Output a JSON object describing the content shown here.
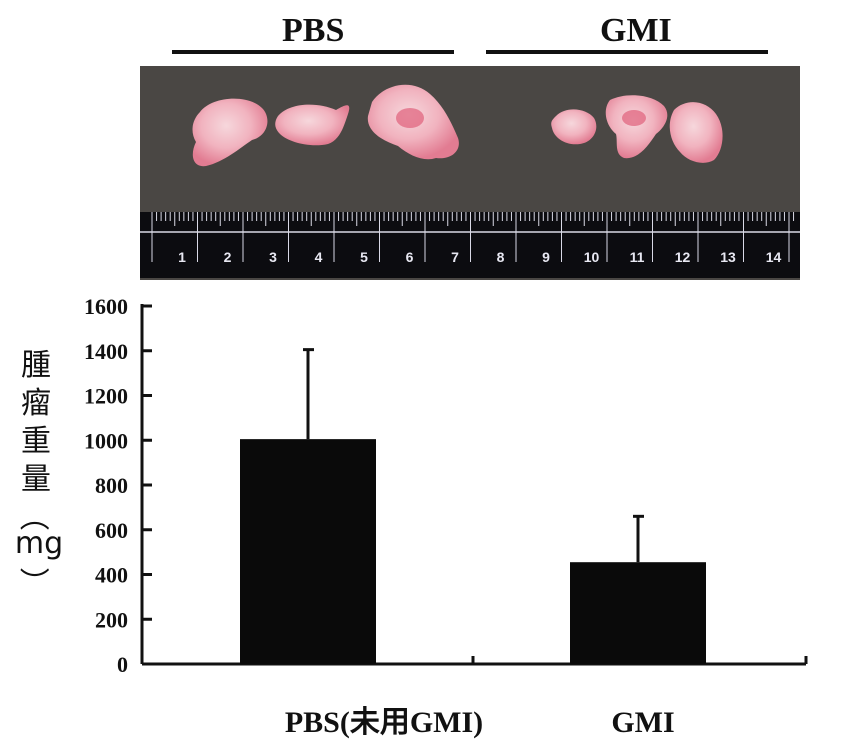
{
  "photo_group_labels": {
    "left": "PBS",
    "right": "GMI"
  },
  "ruler_numbers": [
    "1",
    "2",
    "3",
    "4",
    "5",
    "6",
    "7",
    "8",
    "9",
    "10",
    "11",
    "12",
    "13",
    "14"
  ],
  "ylabel": {
    "chars": [
      "腫",
      "瘤",
      "重",
      "量"
    ],
    "open_paren": "（",
    "unit": "mg",
    "close_paren": "）"
  },
  "chart_data": {
    "type": "bar",
    "categories": [
      "PBS(未用GMI)",
      "GMI"
    ],
    "values": [
      1005,
      455
    ],
    "errors": [
      400,
      205
    ],
    "ylim": [
      0,
      1600
    ],
    "yticks": [
      0,
      200,
      400,
      600,
      800,
      1000,
      1200,
      1400,
      1600
    ],
    "ylabel": "腫瘤重量（mg）",
    "bar_color": "#0a0a0a"
  }
}
